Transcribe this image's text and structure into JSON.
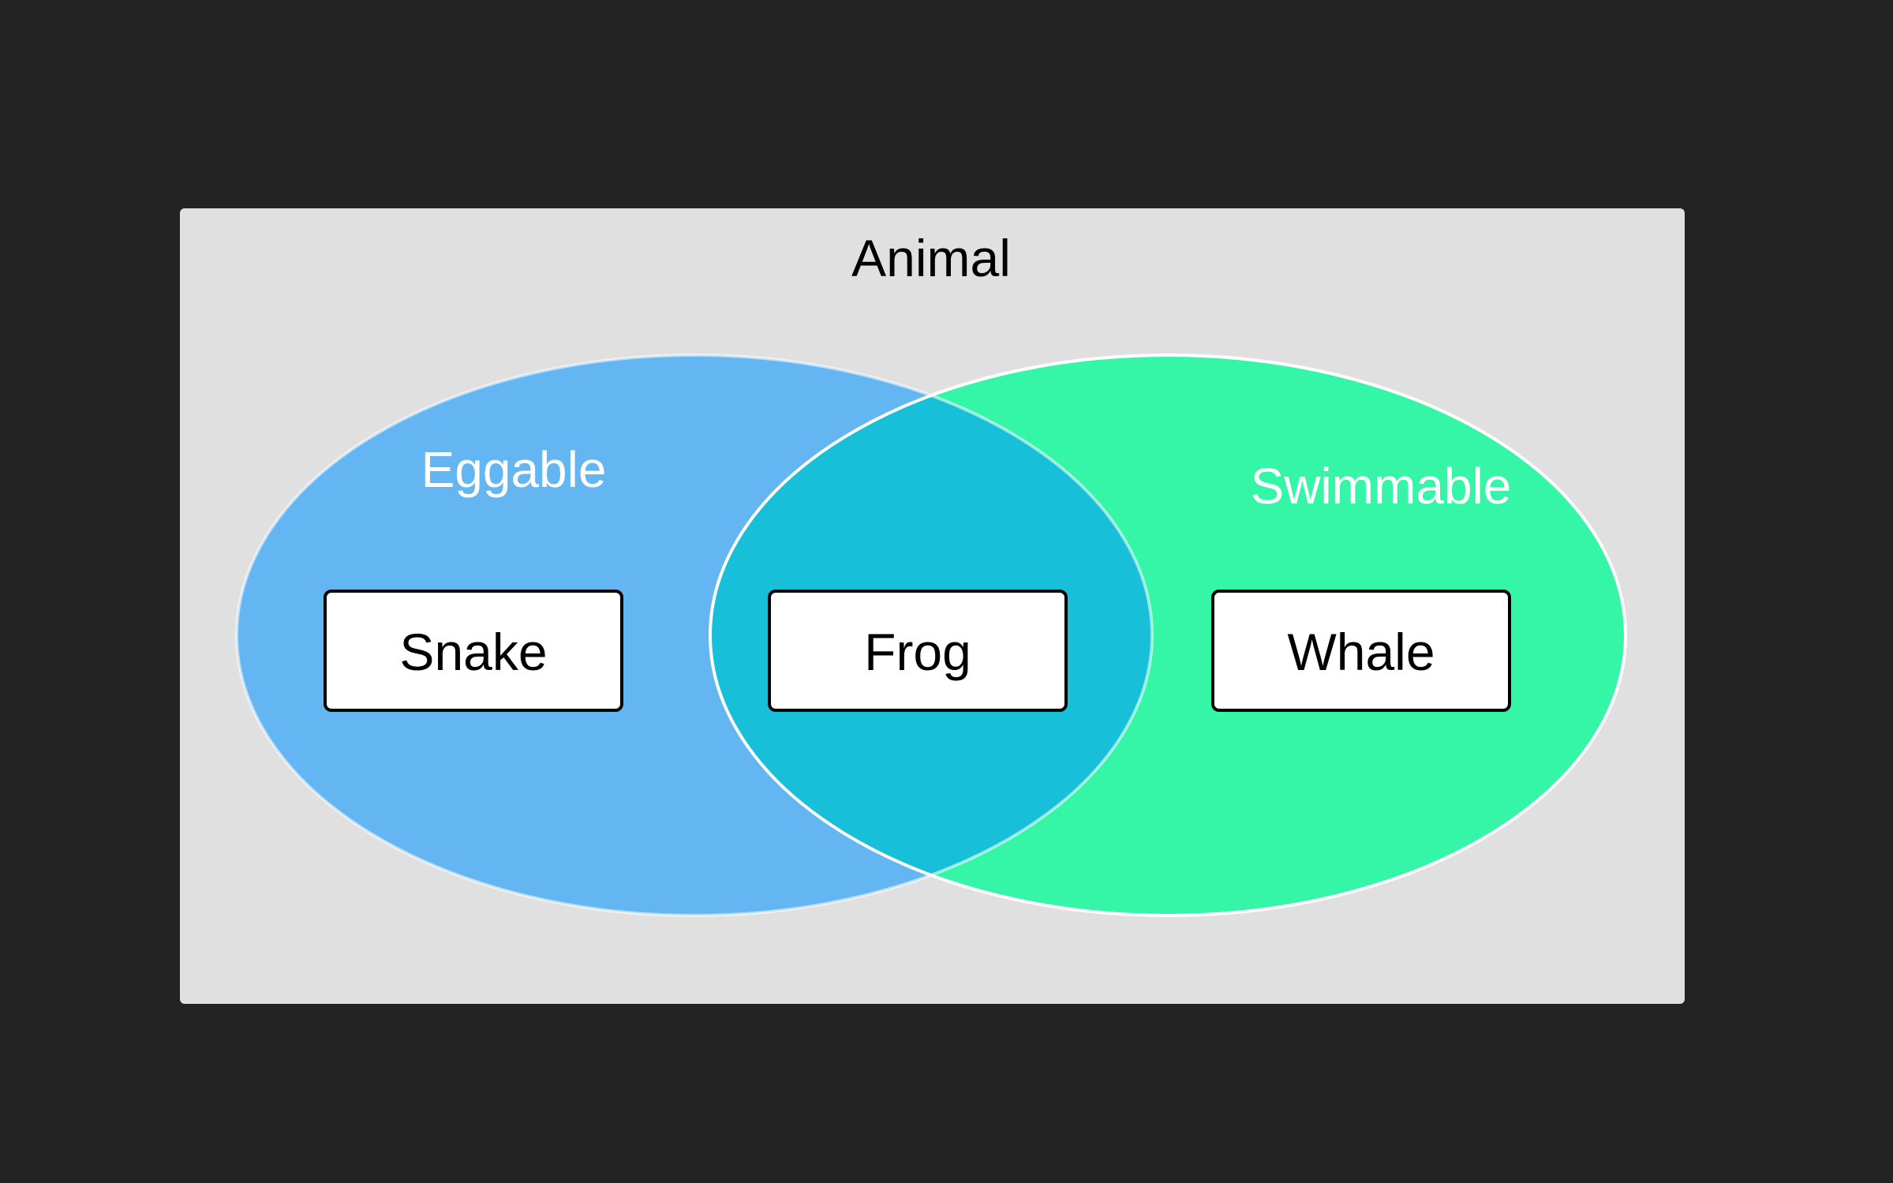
{
  "universe": {
    "label": "Animal",
    "color": "#e0e0e0"
  },
  "sets": [
    {
      "label": "Eggable",
      "color": "#63b6f2"
    },
    {
      "label": "Swimmable",
      "color": "#35f5a6"
    }
  ],
  "intersection": {
    "color": "#18bfd8"
  },
  "items": [
    {
      "label": "Snake",
      "region": "Eggable only"
    },
    {
      "label": "Frog",
      "region": "Eggable and Swimmable"
    },
    {
      "label": "Whale",
      "region": "Swimmable only"
    }
  ],
  "colors": {
    "background": "#232323",
    "outline": "#ffffff",
    "item_fill": "#ffffff",
    "item_border": "#000000"
  }
}
